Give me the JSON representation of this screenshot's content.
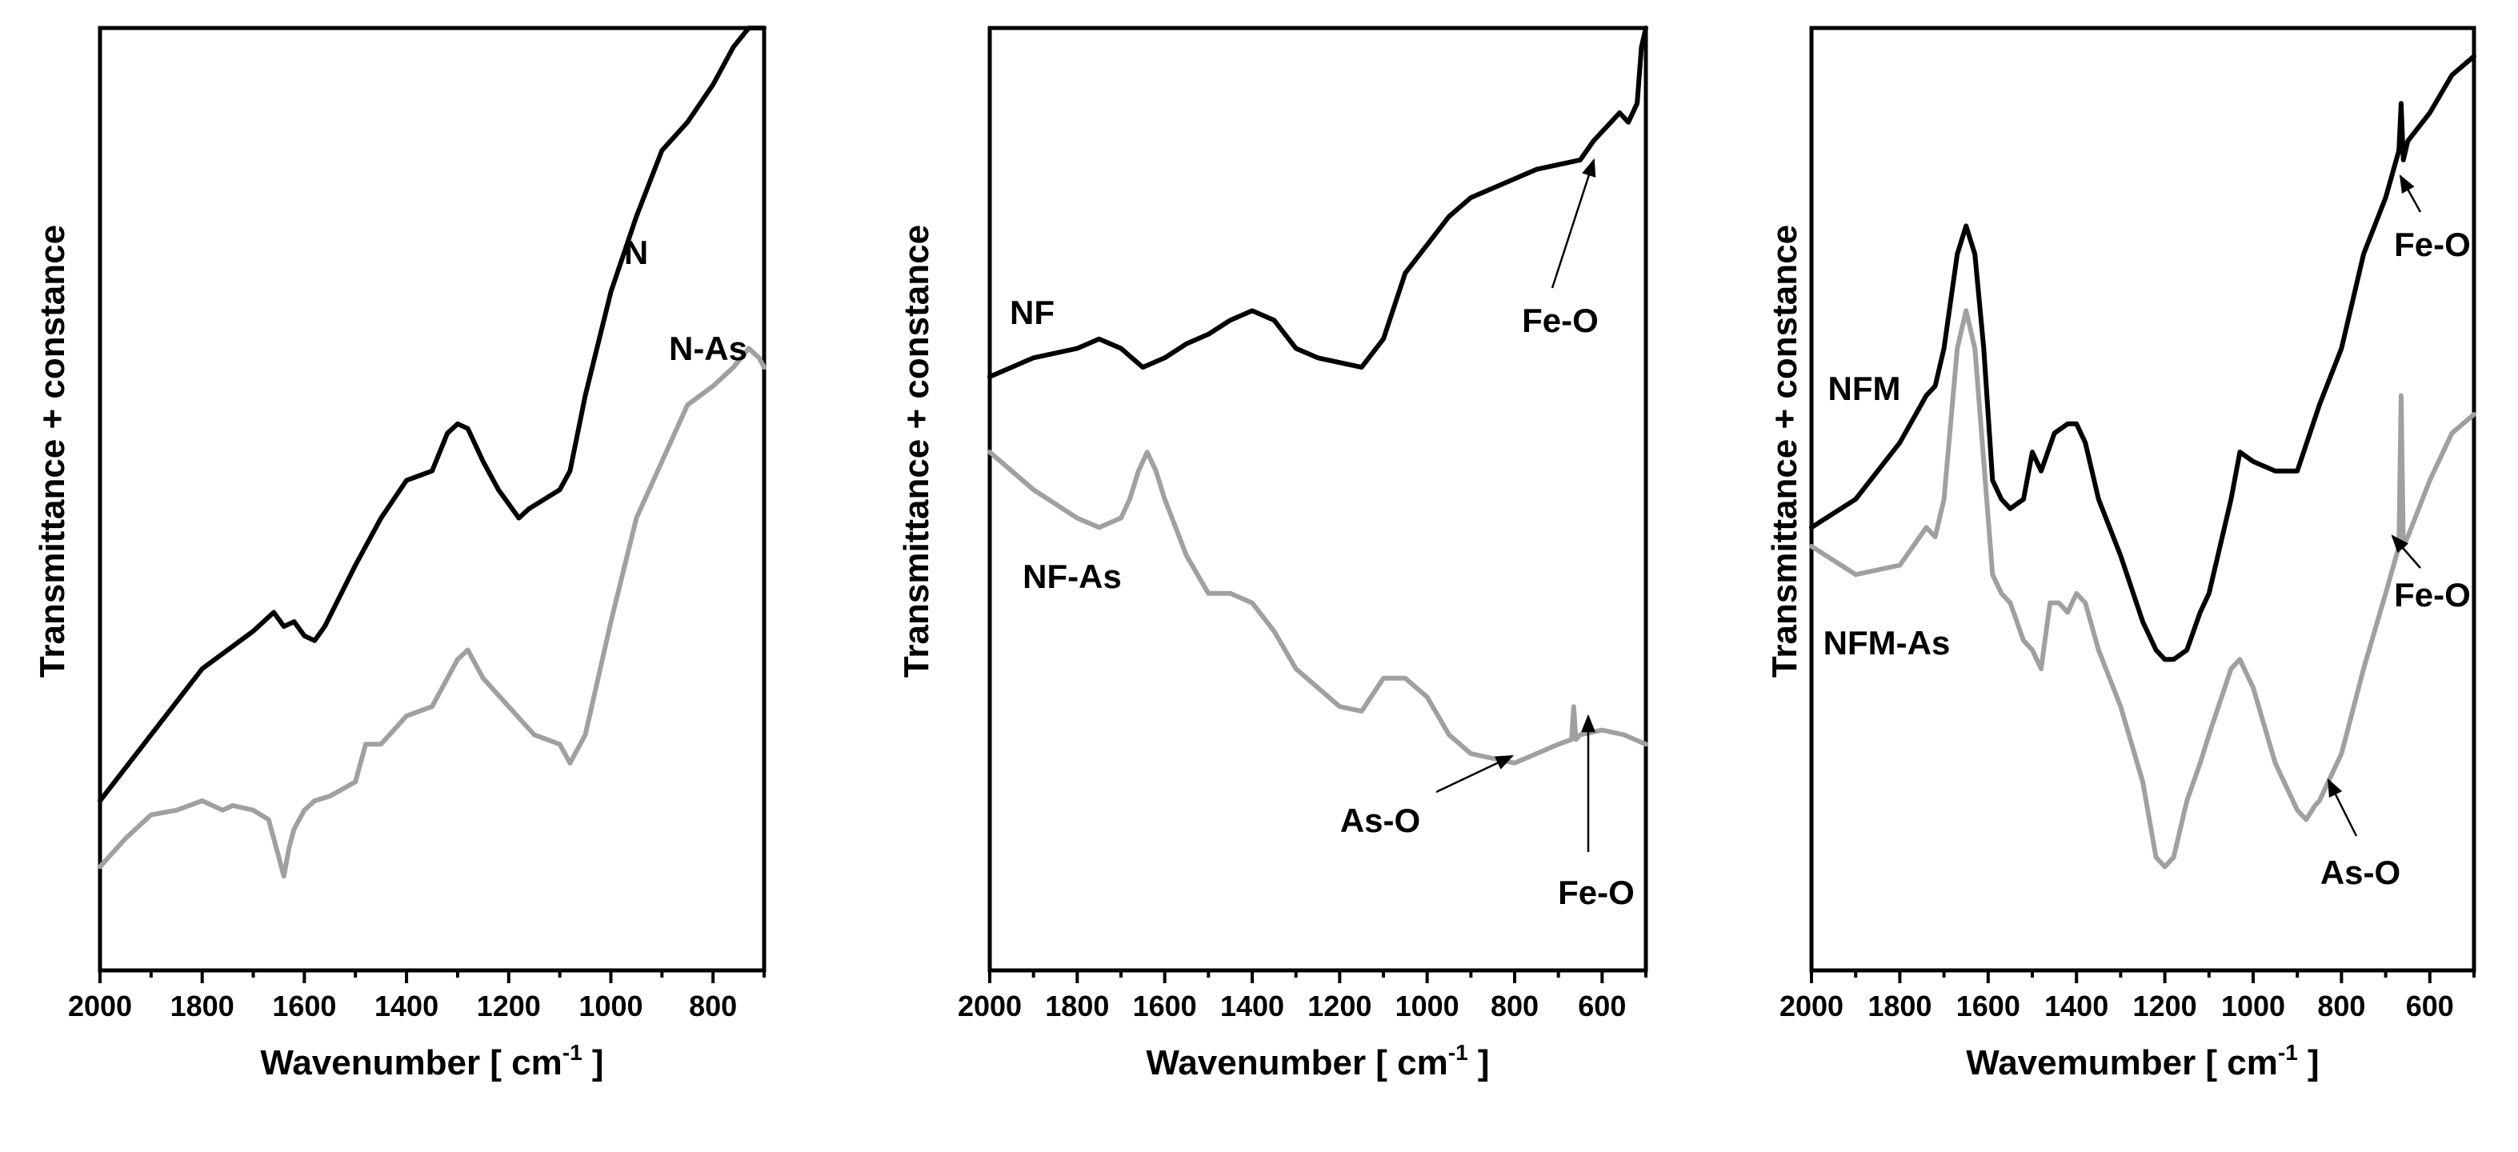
{
  "chart_data": [
    {
      "type": "line",
      "panel": "left",
      "xlabel": "Wavenumber",
      "xunit": "[ cm",
      "xunit_sup": "-1",
      "xunit_close": "]",
      "ylabel": "Transmittance + constance",
      "xlim": [
        2000,
        700
      ],
      "ylim": [
        0,
        1
      ],
      "xticks": [
        2000,
        1800,
        1600,
        1400,
        1200,
        1000,
        800
      ],
      "series": [
        {
          "name": "N",
          "color": "#000000",
          "x": [
            2000,
            1900,
            1800,
            1700,
            1660,
            1640,
            1620,
            1600,
            1580,
            1560,
            1500,
            1450,
            1400,
            1350,
            1320,
            1300,
            1280,
            1250,
            1220,
            1200,
            1180,
            1160,
            1130,
            1100,
            1080,
            1050,
            1000,
            950,
            900,
            850,
            800,
            760,
            730,
            710,
            700
          ],
          "y": [
            0.18,
            0.25,
            0.32,
            0.36,
            0.38,
            0.365,
            0.37,
            0.355,
            0.35,
            0.365,
            0.43,
            0.48,
            0.52,
            0.53,
            0.57,
            0.58,
            0.575,
            0.54,
            0.51,
            0.495,
            0.48,
            0.49,
            0.5,
            0.51,
            0.53,
            0.61,
            0.72,
            0.8,
            0.87,
            0.9,
            0.94,
            0.98,
            1.0,
            1.0,
            1.0
          ]
        },
        {
          "name": "N-As",
          "color": "#a0a0a0",
          "x": [
            2000,
            1950,
            1900,
            1850,
            1800,
            1760,
            1740,
            1700,
            1670,
            1650,
            1640,
            1630,
            1620,
            1600,
            1580,
            1550,
            1500,
            1480,
            1450,
            1400,
            1350,
            1300,
            1280,
            1250,
            1200,
            1150,
            1100,
            1080,
            1050,
            1000,
            950,
            900,
            850,
            800,
            760,
            730,
            710,
            700
          ],
          "y": [
            0.11,
            0.14,
            0.165,
            0.17,
            0.18,
            0.17,
            0.175,
            0.17,
            0.16,
            0.12,
            0.1,
            0.13,
            0.15,
            0.17,
            0.18,
            0.185,
            0.2,
            0.24,
            0.24,
            0.27,
            0.28,
            0.33,
            0.34,
            0.31,
            0.28,
            0.25,
            0.24,
            0.22,
            0.25,
            0.37,
            0.48,
            0.54,
            0.6,
            0.62,
            0.64,
            0.66,
            0.65,
            0.64
          ]
        }
      ],
      "annotations": [
        {
          "text": "N"
        },
        {
          "text": "N-As"
        }
      ]
    },
    {
      "type": "line",
      "panel": "middle",
      "xlabel": "Wavenumber",
      "xunit": "[ cm",
      "xunit_sup": "-1",
      "xunit_close": "]",
      "ylabel": "Transmittance + constance",
      "xlim": [
        2000,
        500
      ],
      "ylim": [
        0,
        1
      ],
      "xticks": [
        2000,
        1800,
        1600,
        1400,
        1200,
        1000,
        800,
        600
      ],
      "series": [
        {
          "name": "NF",
          "color": "#000000",
          "x": [
            2000,
            1900,
            1800,
            1750,
            1700,
            1650,
            1600,
            1550,
            1500,
            1450,
            1400,
            1350,
            1300,
            1250,
            1200,
            1150,
            1100,
            1050,
            1000,
            950,
            900,
            850,
            800,
            750,
            700,
            650,
            620,
            600,
            580,
            560,
            540,
            520,
            510,
            500
          ],
          "y": [
            0.63,
            0.65,
            0.66,
            0.67,
            0.66,
            0.64,
            0.65,
            0.665,
            0.675,
            0.69,
            0.7,
            0.69,
            0.66,
            0.65,
            0.645,
            0.64,
            0.67,
            0.74,
            0.77,
            0.8,
            0.82,
            0.83,
            0.84,
            0.85,
            0.855,
            0.86,
            0.88,
            0.89,
            0.9,
            0.91,
            0.9,
            0.92,
            0.98,
            1.0
          ]
        },
        {
          "name": "NF-As",
          "color": "#a0a0a0",
          "x": [
            2000,
            1900,
            1800,
            1750,
            1700,
            1680,
            1660,
            1640,
            1620,
            1600,
            1550,
            1500,
            1450,
            1400,
            1350,
            1300,
            1250,
            1200,
            1150,
            1100,
            1050,
            1000,
            950,
            900,
            850,
            800,
            750,
            700,
            670,
            665,
            660,
            650,
            600,
            550,
            500
          ],
          "y": [
            0.55,
            0.51,
            0.48,
            0.47,
            0.48,
            0.5,
            0.53,
            0.55,
            0.53,
            0.5,
            0.44,
            0.4,
            0.4,
            0.39,
            0.36,
            0.32,
            0.3,
            0.28,
            0.275,
            0.31,
            0.31,
            0.29,
            0.25,
            0.23,
            0.225,
            0.22,
            0.23,
            0.24,
            0.245,
            0.28,
            0.245,
            0.25,
            0.255,
            0.25,
            0.24
          ]
        }
      ],
      "annotations": [
        {
          "text": "NF"
        },
        {
          "text": "NF-As"
        },
        {
          "text": "Fe-O"
        },
        {
          "text": "As-O"
        },
        {
          "text": "Fe-O"
        }
      ]
    },
    {
      "type": "line",
      "panel": "right",
      "xlabel": "Wavemumber",
      "xunit": "[ cm",
      "xunit_sup": "-1",
      "xunit_close": "]",
      "ylabel": "Transmittance + constance",
      "xlim": [
        2000,
        500
      ],
      "ylim": [
        0,
        1
      ],
      "xticks": [
        2000,
        1800,
        1600,
        1400,
        1200,
        1000,
        800,
        600
      ],
      "series": [
        {
          "name": "NFM",
          "color": "#000000",
          "x": [
            2000,
            1900,
            1800,
            1740,
            1720,
            1700,
            1670,
            1650,
            1630,
            1610,
            1590,
            1570,
            1550,
            1520,
            1500,
            1480,
            1450,
            1420,
            1400,
            1380,
            1350,
            1300,
            1250,
            1220,
            1200,
            1180,
            1150,
            1120,
            1100,
            1050,
            1030,
            1000,
            950,
            900,
            850,
            800,
            750,
            700,
            670,
            665,
            660,
            650,
            600,
            550,
            500
          ],
          "y": [
            0.47,
            0.5,
            0.56,
            0.61,
            0.62,
            0.66,
            0.76,
            0.79,
            0.76,
            0.66,
            0.52,
            0.5,
            0.49,
            0.5,
            0.55,
            0.53,
            0.57,
            0.58,
            0.58,
            0.56,
            0.5,
            0.44,
            0.37,
            0.34,
            0.33,
            0.33,
            0.34,
            0.38,
            0.4,
            0.5,
            0.55,
            0.54,
            0.53,
            0.53,
            0.6,
            0.66,
            0.76,
            0.82,
            0.87,
            0.92,
            0.86,
            0.88,
            0.91,
            0.95,
            0.97
          ]
        },
        {
          "name": "NFM-As",
          "color": "#a0a0a0",
          "x": [
            2000,
            1900,
            1800,
            1740,
            1720,
            1700,
            1670,
            1650,
            1630,
            1610,
            1590,
            1570,
            1550,
            1520,
            1500,
            1480,
            1460,
            1440,
            1420,
            1400,
            1380,
            1350,
            1300,
            1250,
            1220,
            1200,
            1180,
            1150,
            1120,
            1100,
            1050,
            1030,
            1000,
            950,
            900,
            880,
            860,
            850,
            800,
            750,
            700,
            670,
            665,
            660,
            650,
            600,
            550,
            500
          ],
          "y": [
            0.45,
            0.42,
            0.43,
            0.47,
            0.46,
            0.5,
            0.66,
            0.7,
            0.66,
            0.54,
            0.42,
            0.4,
            0.39,
            0.35,
            0.34,
            0.32,
            0.39,
            0.39,
            0.38,
            0.4,
            0.39,
            0.34,
            0.28,
            0.2,
            0.12,
            0.11,
            0.12,
            0.18,
            0.22,
            0.25,
            0.32,
            0.33,
            0.3,
            0.22,
            0.17,
            0.16,
            0.175,
            0.18,
            0.23,
            0.32,
            0.4,
            0.45,
            0.61,
            0.45,
            0.46,
            0.52,
            0.57,
            0.59
          ]
        }
      ],
      "annotations": [
        {
          "text": "NFM"
        },
        {
          "text": "NFM-As"
        },
        {
          "text": "Fe-O"
        },
        {
          "text": "Fe-O"
        },
        {
          "text": "As-O"
        }
      ]
    }
  ]
}
